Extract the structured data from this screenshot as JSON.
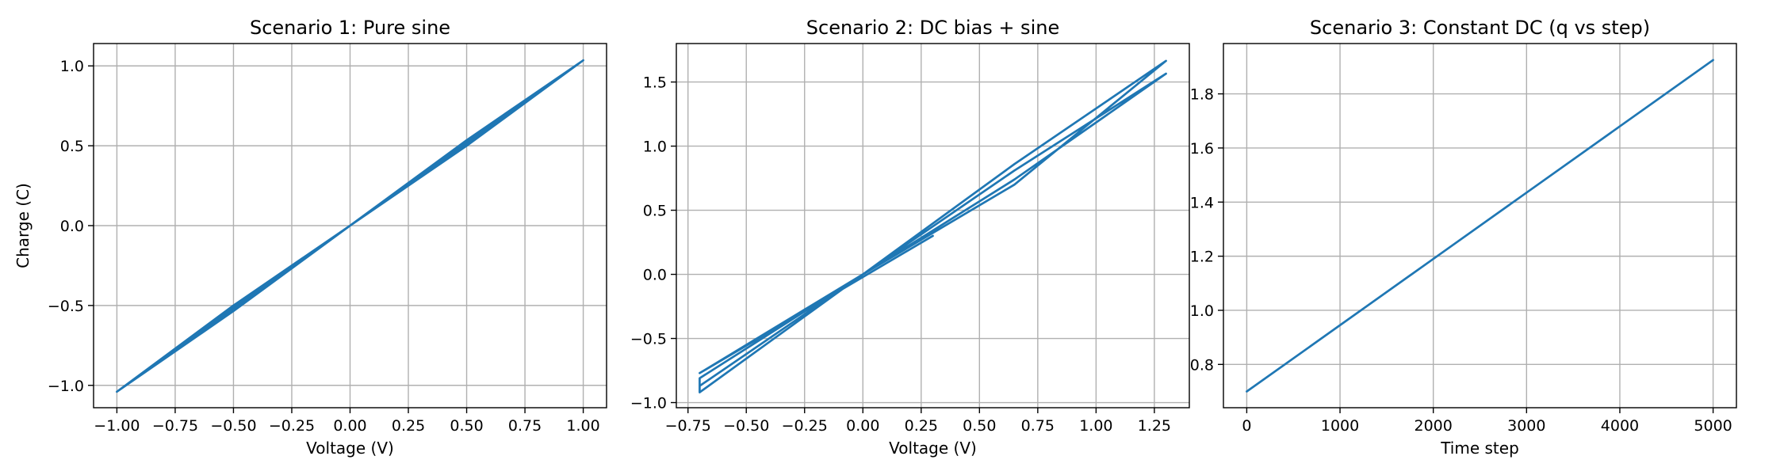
{
  "colors": {
    "series": "#1f77b4",
    "grid": "#b0b0b0",
    "axes": "#000000",
    "background": "#ffffff"
  },
  "chart_data": [
    {
      "type": "line",
      "title": "Scenario 1: Pure sine",
      "xlabel": "Voltage (V)",
      "ylabel": "Charge (C)",
      "xlim": [
        -1.1,
        1.1
      ],
      "ylim": [
        -1.14,
        1.14
      ],
      "grid": true,
      "x_ticks": [
        -1.0,
        -0.75,
        -0.5,
        -0.25,
        0.0,
        0.25,
        0.5,
        0.75,
        1.0
      ],
      "x_tick_labels": [
        "−1.00",
        "−0.75",
        "−0.50",
        "−0.25",
        "0.00",
        "0.25",
        "0.50",
        "0.75",
        "1.00"
      ],
      "y_ticks": [
        -1.0,
        -0.5,
        0.0,
        0.5,
        1.0
      ],
      "y_tick_labels": [
        "−1.0",
        "−0.5",
        "0.0",
        "0.5",
        "1.0"
      ],
      "series": [
        {
          "loops": [
            {
              "upper": [
                [
                  -1.0,
                  -1.04
                ],
                [
                  -0.5,
                  -0.5
                ],
                [
                  0.0,
                  0.0
                ],
                [
                  0.5,
                  0.535
                ],
                [
                  1.0,
                  1.035
                ]
              ],
              "lower": [
                [
                  -1.0,
                  -1.04
                ],
                [
                  -0.5,
                  -0.535
                ],
                [
                  0.0,
                  0.0
                ],
                [
                  0.5,
                  0.5
                ],
                [
                  1.0,
                  1.035
                ]
              ]
            },
            {
              "upper": [
                [
                  -1.0,
                  -1.04
                ],
                [
                  -0.5,
                  -0.51
                ],
                [
                  0.0,
                  0.0
                ],
                [
                  0.5,
                  0.525
                ],
                [
                  1.0,
                  1.035
                ]
              ],
              "lower": [
                [
                  -1.0,
                  -1.04
                ],
                [
                  -0.5,
                  -0.525
                ],
                [
                  0.0,
                  0.0
                ],
                [
                  0.5,
                  0.51
                ],
                [
                  1.0,
                  1.035
                ]
              ]
            }
          ]
        }
      ]
    },
    {
      "type": "line",
      "title": "Scenario 2: DC bias + sine",
      "xlabel": "Voltage (V)",
      "ylabel": "",
      "xlim": [
        -0.8,
        1.4
      ],
      "ylim": [
        -1.04,
        1.8
      ],
      "grid": true,
      "x_ticks": [
        -0.75,
        -0.5,
        -0.25,
        0.0,
        0.25,
        0.5,
        0.75,
        1.0,
        1.25
      ],
      "x_tick_labels": [
        "−0.75",
        "−0.50",
        "−0.25",
        "0.00",
        "0.25",
        "0.50",
        "0.75",
        "1.00",
        "1.25"
      ],
      "y_ticks": [
        -1.0,
        -0.5,
        0.0,
        0.5,
        1.0,
        1.5
      ],
      "y_tick_labels": [
        "−1.0",
        "−0.5",
        "0.0",
        "0.5",
        "1.0",
        "1.5"
      ],
      "series": [
        {
          "start": [
            0.3,
            0.3
          ],
          "loops": [
            {
              "upper": [
                [
                  -0.7,
                  -0.77
                ],
                [
                  0.0,
                  0.0
                ],
                [
                  0.65,
                  0.86
                ],
                [
                  1.3,
                  1.665
                ]
              ],
              "lower": [
                [
                  -0.7,
                  -0.92
                ],
                [
                  0.0,
                  0.0
                ],
                [
                  0.65,
                  0.7
                ],
                [
                  1.3,
                  1.37
                ]
              ]
            },
            {
              "upper": [
                [
                  -0.7,
                  -0.81
                ],
                [
                  0.0,
                  0.0
                ],
                [
                  0.65,
                  0.81
                ],
                [
                  1.3,
                  1.565
                ]
              ],
              "lower": [
                [
                  -0.7,
                  -0.87
                ],
                [
                  0.0,
                  0.0
                ],
                [
                  0.65,
                  0.74
                ],
                [
                  1.3,
                  1.475
                ]
              ]
            }
          ]
        }
      ]
    },
    {
      "type": "line",
      "title": "Scenario 3: Constant DC (q vs step)",
      "xlabel": "Time step",
      "ylabel": "",
      "xlim": [
        -250,
        5250
      ],
      "ylim": [
        0.64,
        1.986
      ],
      "grid": true,
      "x_ticks": [
        0,
        1000,
        2000,
        3000,
        4000,
        5000
      ],
      "x_tick_labels": [
        "0",
        "1000",
        "2000",
        "3000",
        "4000",
        "5000"
      ],
      "y_ticks": [
        0.8,
        1.0,
        1.2,
        1.4,
        1.6,
        1.8
      ],
      "y_tick_labels": [
        "0.8",
        "1.0",
        "1.2",
        "1.4",
        "1.6",
        "1.8"
      ],
      "series": [
        {
          "points": [
            [
              0,
              0.7
            ],
            [
              1000,
              0.945
            ],
            [
              2000,
              1.19
            ],
            [
              3000,
              1.435
            ],
            [
              4000,
              1.68
            ],
            [
              5000,
              1.925
            ]
          ]
        }
      ]
    }
  ]
}
